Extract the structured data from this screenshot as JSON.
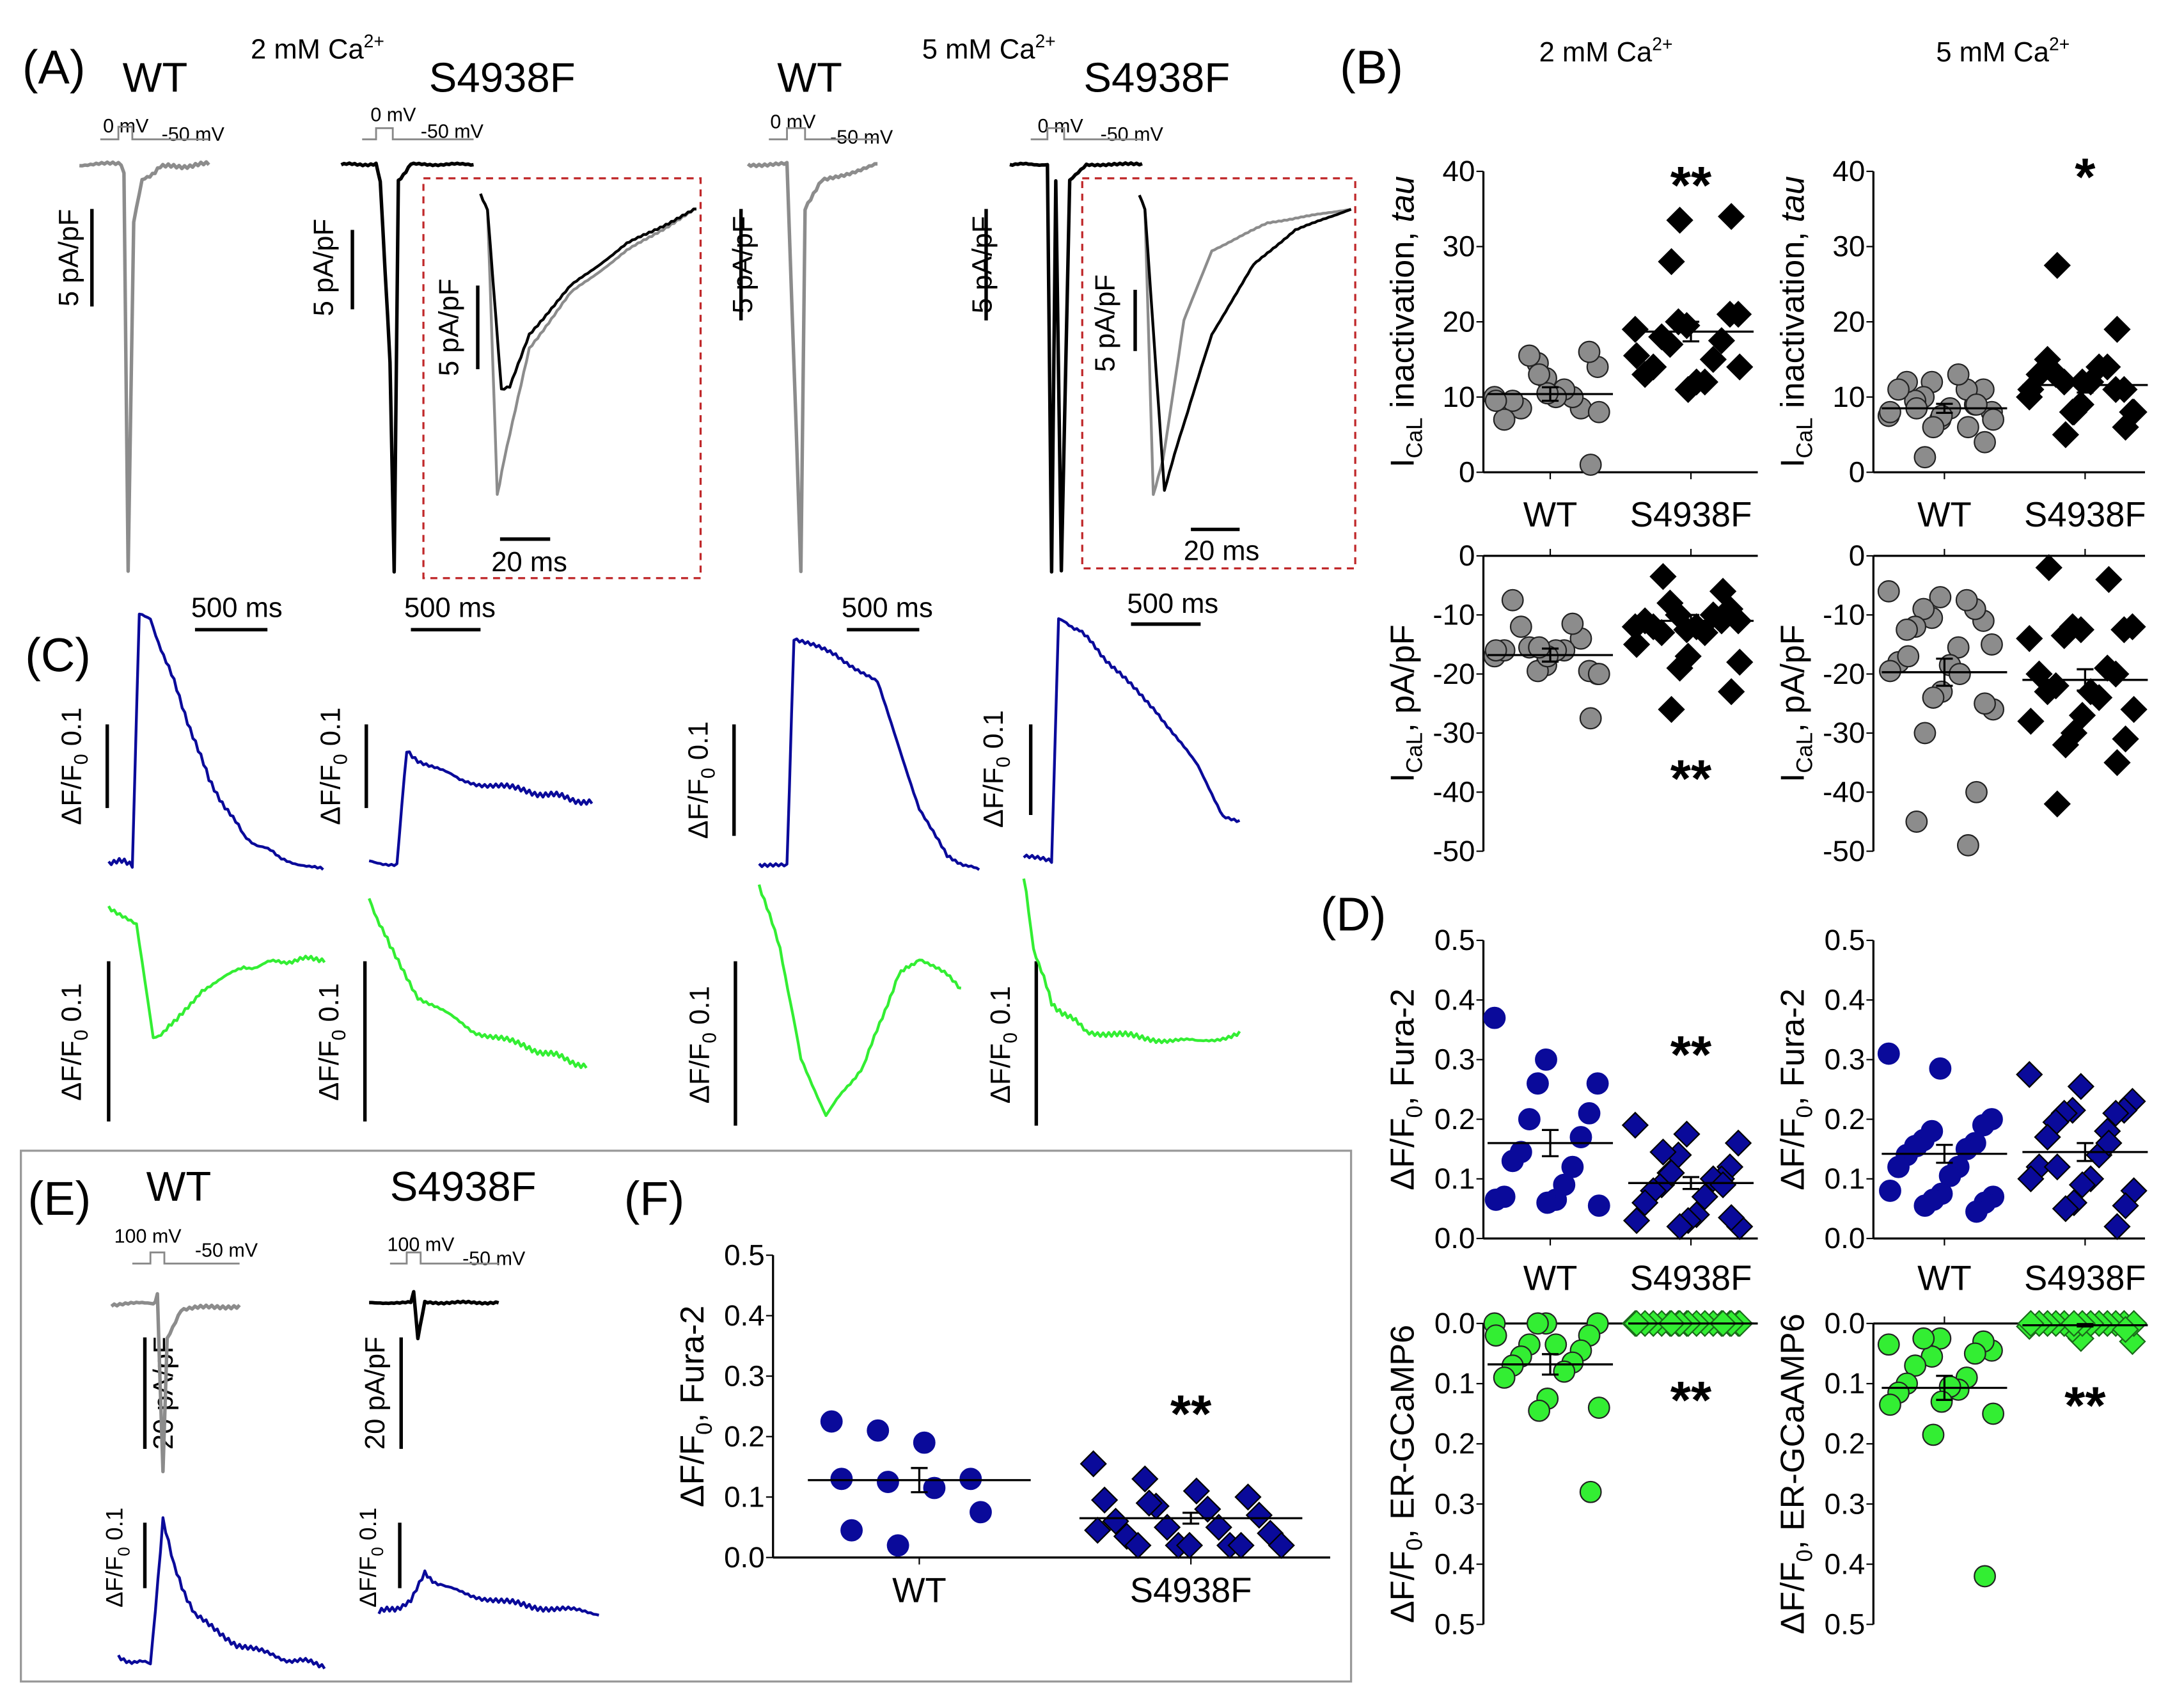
{
  "panels": {
    "A": "(A)",
    "B": "(B)",
    "C": "(C)",
    "D": "(D)",
    "E": "(E)",
    "F": "(F)"
  },
  "conditions": {
    "low": "2 mM Ca",
    "high": "5 mM Ca",
    "charge": "2+"
  },
  "groups": {
    "wt": "WT",
    "mutant": "S4938F"
  },
  "protocol": {
    "step0": "0 mV",
    "hold": "-50 mV",
    "step100": "100 mV"
  },
  "scales": {
    "current5": "5 pA/pF",
    "current20": "20 pA/pF",
    "time20": "20 ms",
    "time500": "500 ms",
    "df_main": "ΔF/F",
    "df_sub": "0",
    "df_val": " 0.1"
  },
  "colors": {
    "wt": "#8c8c8c",
    "mutant": "#000000",
    "fura": "#0a0a9a",
    "ercamp": "#33ee33",
    "inset_border": "#c0282a"
  },
  "chart_data": [
    {
      "id": "B-tau-2mM",
      "type": "scatter",
      "ylabel": {
        "main": "I",
        "sub": "CaL",
        "rest": " inactivation, ",
        "ital": "tau"
      },
      "ylim": [
        0,
        40
      ],
      "yticks": [
        "0",
        "10",
        "20",
        "30",
        "40"
      ],
      "categories": [
        "WT",
        "S4938F"
      ],
      "annotation": "**",
      "series": [
        {
          "group": "wt",
          "marker": "circle",
          "color": "#8c8c8c",
          "mean": 10.4,
          "sem": 0.9,
          "values": [
            10,
            12.5,
            14,
            14.5,
            16,
            15.5,
            8.5,
            8.5,
            10,
            9.5,
            11,
            7,
            10,
            9.5,
            10.5,
            8,
            13,
            1
          ]
        },
        {
          "group": "mutant",
          "marker": "diamond",
          "color": "#000000",
          "mean": 18.7,
          "sem": 1.3,
          "values": [
            19,
            19.5,
            21,
            20,
            21,
            17,
            17.5,
            18,
            15,
            14,
            12,
            13,
            12,
            15.5,
            11,
            14,
            33.5,
            34,
            28
          ]
        }
      ]
    },
    {
      "id": "B-tau-5mM",
      "type": "scatter",
      "ylabel": {
        "main": "I",
        "sub": "CaL",
        "rest": " inactivation, ",
        "ital": "tau"
      },
      "ylim": [
        0,
        40
      ],
      "yticks": [
        "0",
        "10",
        "20",
        "30",
        "40"
      ],
      "categories": [
        "WT",
        "S4938F"
      ],
      "annotation": "*",
      "series": [
        {
          "group": "wt",
          "marker": "circle",
          "color": "#8c8c8c",
          "mean": 8.5,
          "sem": 0.6,
          "values": [
            7.5,
            7,
            8,
            12,
            11,
            10,
            9,
            9.5,
            11,
            12,
            13,
            11,
            8.5,
            8,
            7.5,
            7,
            6,
            4,
            2,
            9,
            8.5,
            6
          ]
        },
        {
          "group": "mutant",
          "marker": "diamond",
          "color": "#000000",
          "mean": 11.6,
          "sem": 1.0,
          "values": [
            10,
            9,
            8,
            8,
            11,
            12,
            11,
            13,
            14,
            15,
            14,
            13,
            12,
            11,
            12,
            8,
            8,
            6,
            5,
            19,
            27.5
          ]
        }
      ]
    },
    {
      "id": "B-ICaL-2mM",
      "type": "scatter",
      "ylabel": {
        "main": "I",
        "sub": "CaL",
        "rest": ", pA/pF",
        "ital": ""
      },
      "ylim": [
        -50,
        0
      ],
      "yticks": [
        "-50",
        "-40",
        "-30",
        "-20",
        "-10",
        "0"
      ],
      "annotation": "**",
      "series": [
        {
          "group": "wt",
          "marker": "circle",
          "color": "#8c8c8c",
          "mean": -16.8,
          "sem": 1.1,
          "values": [
            -17,
            -18.5,
            -20,
            -19.5,
            -19.5,
            -15.5,
            -14,
            -12,
            -11.5,
            -7.5,
            -16,
            -16,
            -16,
            -16,
            -17,
            -20,
            -15.5,
            -27.5
          ]
        },
        {
          "group": "mutant",
          "marker": "diamond",
          "color": "#000000",
          "mean": -11,
          "sem": 1.0,
          "values": [
            -12,
            -12.5,
            -11,
            -10,
            -9,
            -8,
            -11,
            -13,
            -10,
            -12,
            -13,
            -11,
            -12,
            -15,
            -17,
            -18,
            -19,
            -23,
            -26,
            -6,
            -3.5
          ]
        }
      ]
    },
    {
      "id": "B-ICaL-5mM",
      "type": "scatter",
      "ylabel": {
        "main": "I",
        "sub": "CaL",
        "rest": ", pA/pF",
        "ital": ""
      },
      "ylim": [
        -50,
        0
      ],
      "yticks": [
        "-50",
        "-40",
        "-30",
        "-20",
        "-10",
        "0"
      ],
      "series": [
        {
          "group": "wt",
          "marker": "circle",
          "color": "#8c8c8c",
          "mean": -19.7,
          "sem": 2.3,
          "values": [
            -6,
            -7,
            -15,
            -10.5,
            -11,
            -9,
            -9,
            -12,
            -7.5,
            -12.5,
            -15.5,
            -18,
            -18.5,
            -19.5,
            -23,
            -26,
            -24,
            -25,
            -30,
            -40,
            -45,
            -49,
            -17,
            -20
          ]
        },
        {
          "group": "mutant",
          "marker": "diamond",
          "color": "#000000",
          "mean": -21,
          "sem": 1.8,
          "values": [
            -14,
            -12.5,
            -12,
            -12,
            -12.5,
            -13.5,
            -20,
            -22,
            -19,
            -23,
            -24,
            -20,
            -23,
            -28,
            -27,
            -26,
            -30,
            -31,
            -32,
            -35,
            -42,
            -4,
            -2
          ]
        }
      ]
    },
    {
      "id": "D-fura-2mM",
      "type": "scatter",
      "ylabel": {
        "main": "ΔF/F",
        "sub": "0",
        "rest": ",  Fura-2",
        "ital": ""
      },
      "ylim": [
        0,
        0.5
      ],
      "yticks": [
        "0.0",
        "0.1",
        "0.2",
        "0.3",
        "0.4",
        "0.5"
      ],
      "categories": [
        "WT",
        "S4938F"
      ],
      "annotation": "**",
      "series": [
        {
          "group": "wt",
          "marker": "circle",
          "color": "#0a0a9a",
          "mean": 0.16,
          "sem": 0.022,
          "values": [
            0.37,
            0.3,
            0.26,
            0.26,
            0.21,
            0.2,
            0.17,
            0.145,
            0.12,
            0.13,
            0.09,
            0.07,
            0.065,
            0.065,
            0.06,
            0.055
          ]
        },
        {
          "group": "mutant",
          "marker": "diamond",
          "color": "#0a0a9a",
          "mean": 0.093,
          "sem": 0.01,
          "values": [
            0.19,
            0.175,
            0.16,
            0.14,
            0.12,
            0.11,
            0.1,
            0.09,
            0.1,
            0.08,
            0.07,
            0.06,
            0.04,
            0.03,
            0.03,
            0.02,
            0.02,
            0.035,
            0.11,
            0.09,
            0.145
          ]
        }
      ]
    },
    {
      "id": "D-fura-5mM",
      "type": "scatter",
      "ylabel": {
        "main": "ΔF/F",
        "sub": "0",
        "rest": ",  Fura-2",
        "ital": ""
      },
      "ylim": [
        0,
        0.5
      ],
      "yticks": [
        "0.0",
        "0.1",
        "0.2",
        "0.3",
        "0.4",
        "0.5"
      ],
      "categories": [
        "WT",
        "S4938F"
      ],
      "series": [
        {
          "group": "wt",
          "marker": "circle",
          "color": "#0a0a9a",
          "mean": 0.142,
          "sem": 0.015,
          "values": [
            0.31,
            0.285,
            0.2,
            0.18,
            0.19,
            0.165,
            0.16,
            0.155,
            0.15,
            0.14,
            0.12,
            0.12,
            0.105,
            0.08,
            0.075,
            0.07,
            0.065,
            0.06,
            0.055,
            0.045,
            0.155
          ]
        },
        {
          "group": "mutant",
          "marker": "diamond",
          "color": "#0a0a9a",
          "mean": 0.145,
          "sem": 0.015,
          "values": [
            0.275,
            0.255,
            0.23,
            0.215,
            0.215,
            0.21,
            0.21,
            0.195,
            0.18,
            0.17,
            0.14,
            0.12,
            0.1,
            0.1,
            0.09,
            0.08,
            0.06,
            0.055,
            0.05,
            0.02,
            0.12,
            0.16
          ]
        }
      ]
    },
    {
      "id": "D-er-2mM",
      "type": "scatter",
      "ylabel": {
        "main": "ΔF/F",
        "sub": "0",
        "rest": ",  ER-GCaMP6",
        "ital": ""
      },
      "ylim": [
        0,
        0.5
      ],
      "inverted": true,
      "yticks": [
        "0.0",
        "0.1",
        "0.2",
        "0.3",
        "0.4",
        "0.5"
      ],
      "annotation": "**",
      "series": [
        {
          "group": "wt",
          "marker": "circle",
          "color": "#33ee33",
          "mean": 0.068,
          "sem": 0.017,
          "values": [
            0,
            0,
            0,
            0,
            0.02,
            0.035,
            0.045,
            0.055,
            0.065,
            0.07,
            0.08,
            0.09,
            0.035,
            0.02,
            0.125,
            0.14,
            0.145,
            0.28
          ]
        },
        {
          "group": "mutant",
          "marker": "diamond",
          "color": "#33ee33",
          "mean": 0,
          "sem": 0,
          "values": [
            0,
            0,
            0,
            0,
            0,
            0,
            0,
            0,
            0,
            0,
            0,
            0,
            0,
            0,
            0,
            0,
            0,
            0,
            0,
            0
          ]
        }
      ]
    },
    {
      "id": "D-er-5mM",
      "type": "scatter",
      "ylabel": {
        "main": "ΔF/F",
        "sub": "0",
        "rest": ",  ER-GCaAMP6",
        "ital": ""
      },
      "ylim": [
        0,
        0.5
      ],
      "inverted": true,
      "yticks": [
        "0.0",
        "0.1",
        "0.2",
        "0.3",
        "0.4",
        "0.5"
      ],
      "annotation": "**",
      "series": [
        {
          "group": "wt",
          "marker": "circle",
          "color": "#33ee33",
          "mean": 0.107,
          "sem": 0.02,
          "values": [
            0.035,
            0.025,
            0.045,
            0.055,
            0.03,
            0.025,
            0.05,
            0.07,
            0.09,
            0.1,
            0.11,
            0.115,
            0.105,
            0.135,
            0.13,
            0.15,
            0.185,
            0.42
          ]
        },
        {
          "group": "mutant",
          "marker": "diamond",
          "color": "#33ee33",
          "mean": 0.003,
          "sem": 0.002,
          "values": [
            0.005,
            0.025,
            0.03,
            0.01,
            0,
            0,
            0,
            0,
            0,
            0,
            0,
            0,
            0,
            0,
            0,
            0,
            0,
            0.01
          ]
        }
      ]
    },
    {
      "id": "F-fura-100mV",
      "type": "scatter",
      "ylabel": {
        "main": "ΔF/F",
        "sub": "0",
        "rest": ",  Fura-2",
        "ital": ""
      },
      "ylim": [
        0,
        0.5
      ],
      "yticks": [
        "0.0",
        "0.1",
        "0.2",
        "0.3",
        "0.4",
        "0.5"
      ],
      "categories": [
        "WT",
        "S4938F"
      ],
      "annotation": "**",
      "series": [
        {
          "group": "wt",
          "marker": "circle",
          "color": "#0a0a9a",
          "mean": 0.128,
          "sem": 0.02,
          "values": [
            0.225,
            0.21,
            0.19,
            0.13,
            0.13,
            0.125,
            0.115,
            0.075,
            0.045,
            0.02
          ]
        },
        {
          "group": "mutant",
          "marker": "diamond",
          "color": "#0a0a9a",
          "mean": 0.065,
          "sem": 0.009,
          "values": [
            0.155,
            0.13,
            0.11,
            0.1,
            0.095,
            0.085,
            0.08,
            0.07,
            0.06,
            0.05,
            0.05,
            0.04,
            0.035,
            0.02,
            0.02,
            0.02,
            0.02,
            0.02,
            0.02,
            0.045,
            0.09
          ]
        }
      ]
    }
  ]
}
